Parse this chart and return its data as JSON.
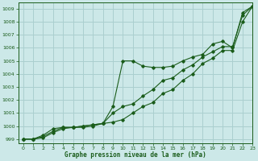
{
  "title": "Graphe pression niveau de la mer (hPa)",
  "background_color": "#cce8e8",
  "line_color": "#1a5c1a",
  "grid_color": "#aacfcf",
  "xlim": [
    -0.5,
    23
  ],
  "ylim": [
    998.7,
    1009.5
  ],
  "yticks": [
    999,
    1000,
    1001,
    1002,
    1003,
    1004,
    1005,
    1006,
    1007,
    1008,
    1009
  ],
  "xticks": [
    0,
    1,
    2,
    3,
    4,
    5,
    6,
    7,
    8,
    9,
    10,
    11,
    12,
    13,
    14,
    15,
    16,
    17,
    18,
    19,
    20,
    21,
    22,
    23
  ],
  "line1": [
    999.0,
    999.0,
    999.3,
    999.8,
    999.9,
    999.9,
    1000.0,
    1000.1,
    1000.2,
    1001.5,
    1005.0,
    1005.0,
    1004.6,
    1004.5,
    1004.5,
    1004.6,
    1005.0,
    1005.3,
    1005.5,
    1006.3,
    1006.5,
    1006.0,
    1008.7,
    1009.2
  ],
  "line2": [
    999.0,
    999.0,
    999.2,
    999.6,
    999.9,
    999.9,
    1000.0,
    1000.1,
    1000.2,
    1001.0,
    1001.5,
    1001.7,
    1002.3,
    1002.8,
    1003.5,
    1003.7,
    1004.3,
    1004.7,
    1005.3,
    1005.7,
    1006.1,
    1006.1,
    1008.5,
    1009.2
  ],
  "line3": [
    999.0,
    999.0,
    999.1,
    999.5,
    999.8,
    999.9,
    999.9,
    1000.0,
    1000.2,
    1000.3,
    1000.5,
    1001.0,
    1001.5,
    1001.8,
    1002.5,
    1002.8,
    1003.5,
    1004.0,
    1004.8,
    1005.2,
    1005.8,
    1005.8,
    1008.0,
    1009.2
  ]
}
